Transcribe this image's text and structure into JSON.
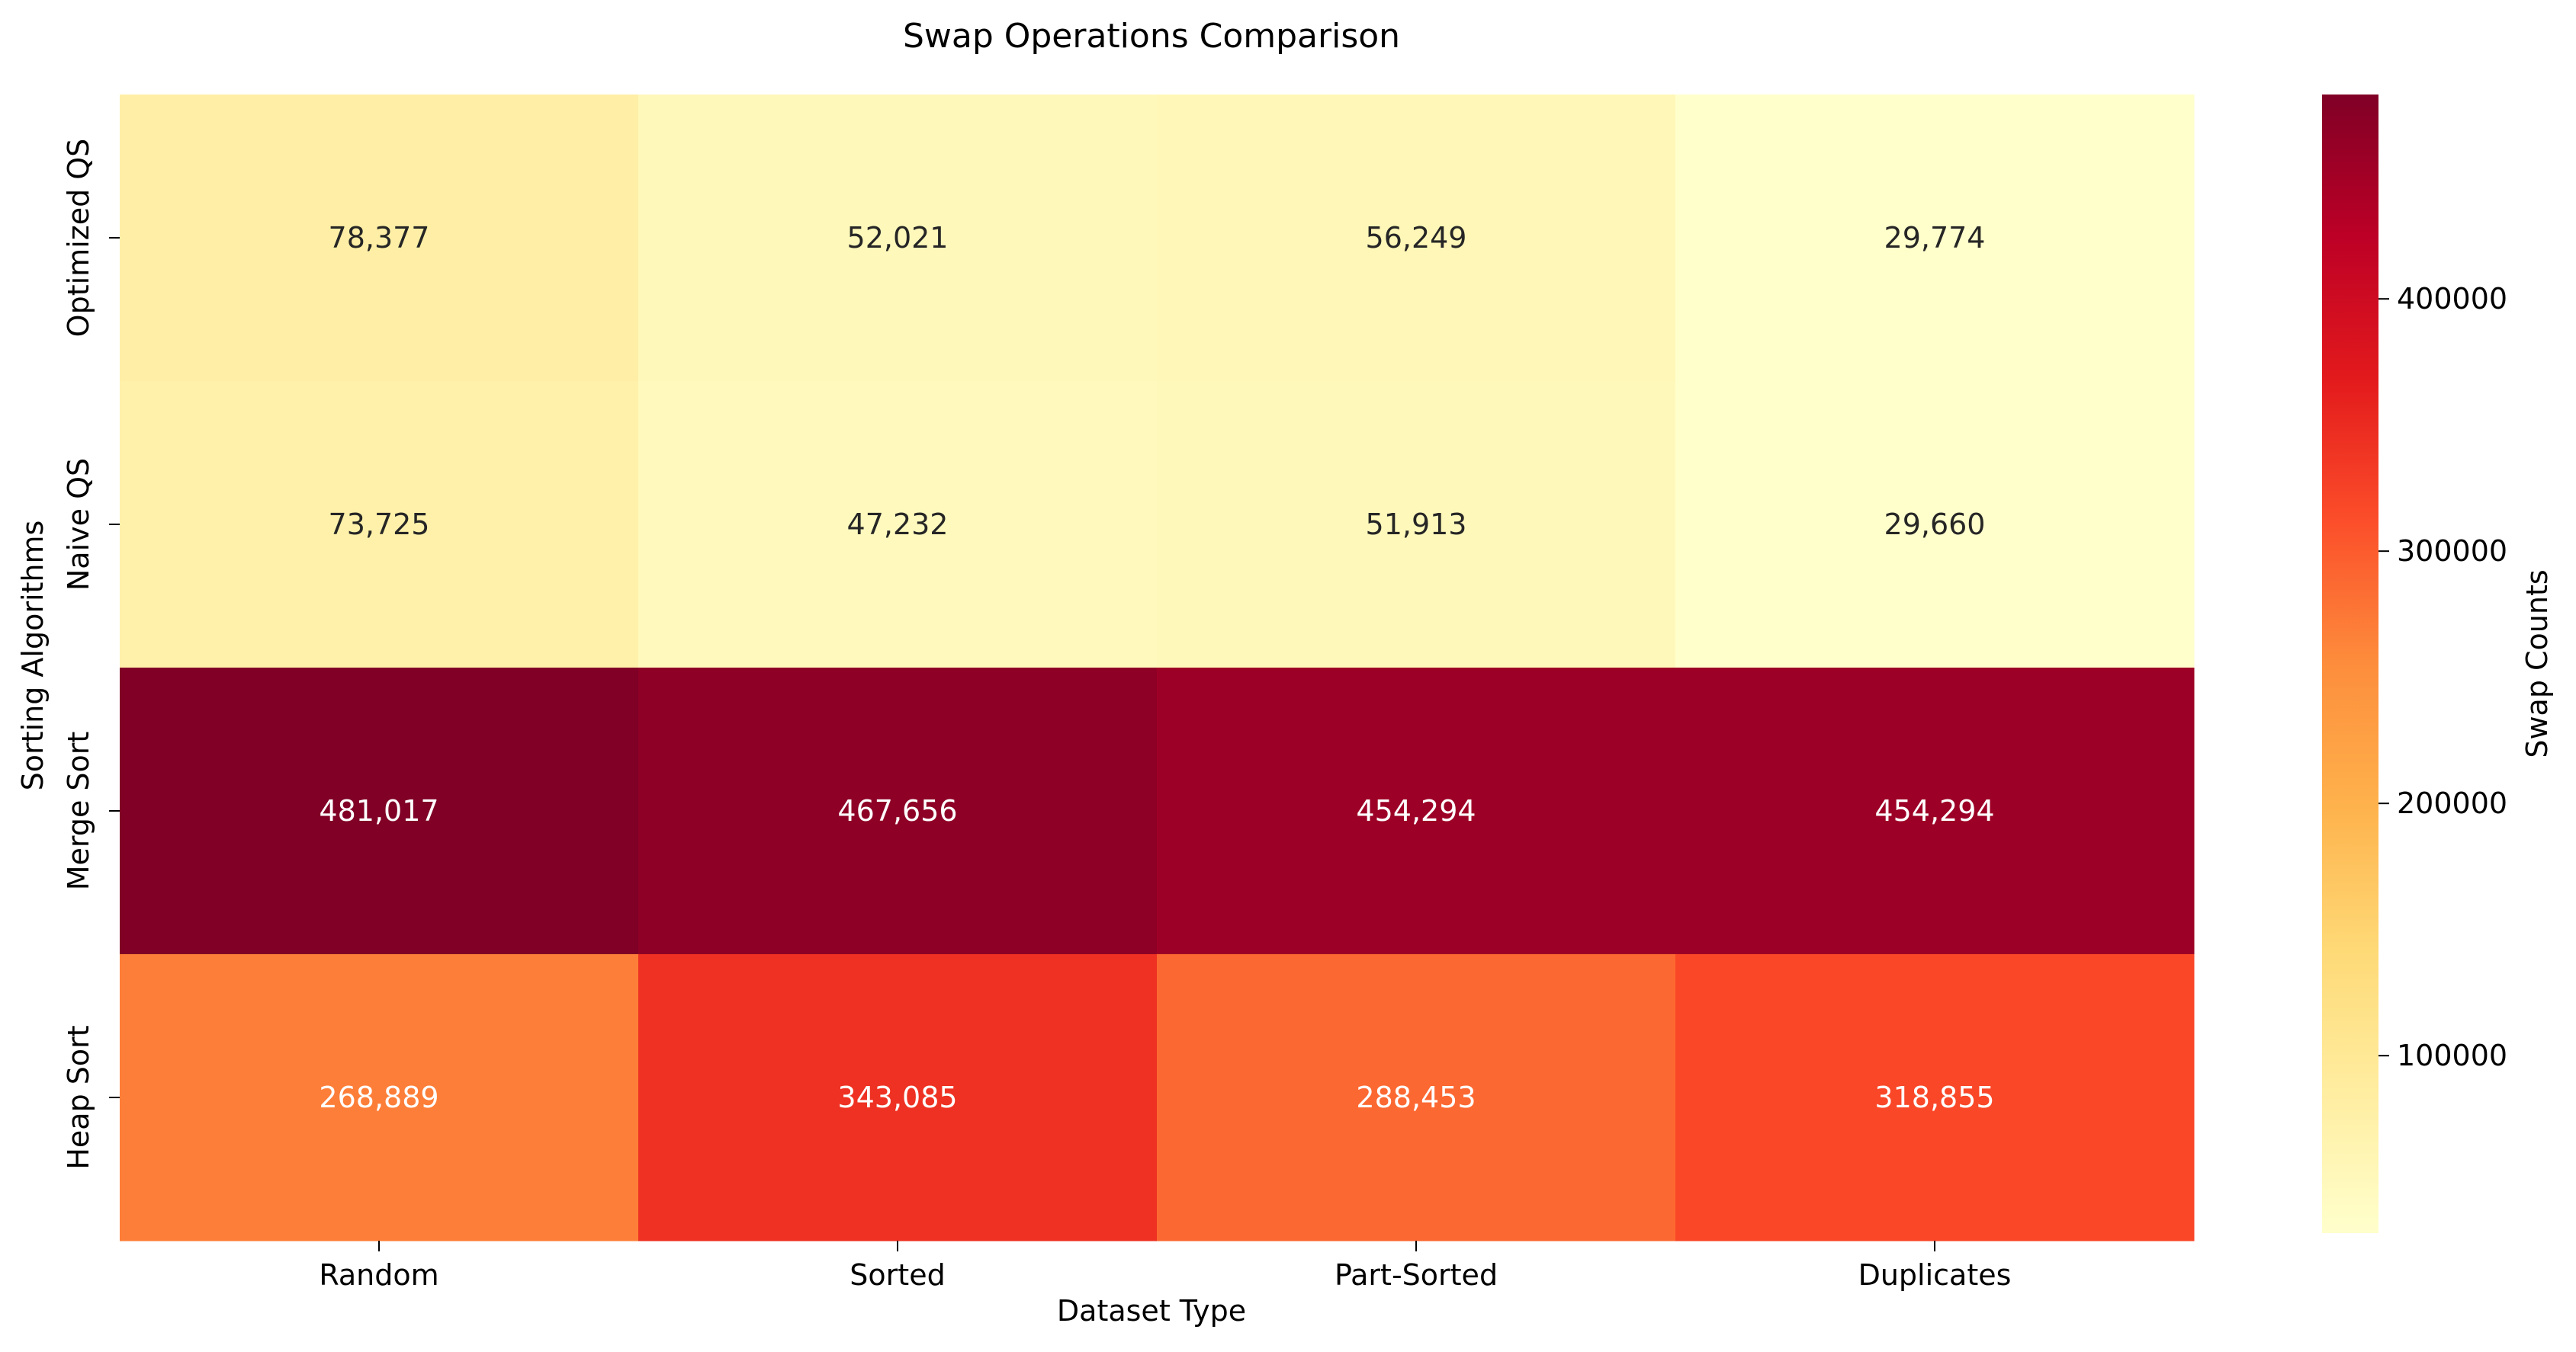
{
  "chart_data": {
    "type": "heatmap",
    "title": "Swap Operations Comparison",
    "xlabel": "Dataset Type",
    "ylabel": "Sorting Algorithms",
    "x_categories": [
      "Random",
      "Sorted",
      "Part-Sorted",
      "Duplicates"
    ],
    "y_categories": [
      "Optimized QS",
      "Naive QS",
      "Merge Sort",
      "Heap Sort"
    ],
    "values": [
      [
        78377,
        52021,
        56249,
        29774
      ],
      [
        73725,
        47232,
        51913,
        29660
      ],
      [
        481017,
        467656,
        454294,
        454294
      ],
      [
        268889,
        343085,
        288453,
        318855
      ]
    ],
    "cell_labels": [
      [
        "78,377",
        "52,021",
        "56,249",
        "29,774"
      ],
      [
        "73,725",
        "47,232",
        "51,913",
        "29,660"
      ],
      [
        "481,017",
        "467,656",
        "454,294",
        "454,294"
      ],
      [
        "268,889",
        "343,085",
        "288,453",
        "318,855"
      ]
    ],
    "colormap": "YlOrRd",
    "colorbar": {
      "label": "Swap Counts",
      "range": [
        29660,
        481017
      ],
      "ticks": [
        100000,
        200000,
        300000,
        400000
      ],
      "tick_labels": [
        "100000",
        "200000",
        "300000",
        "400000"
      ]
    },
    "grid": false
  }
}
